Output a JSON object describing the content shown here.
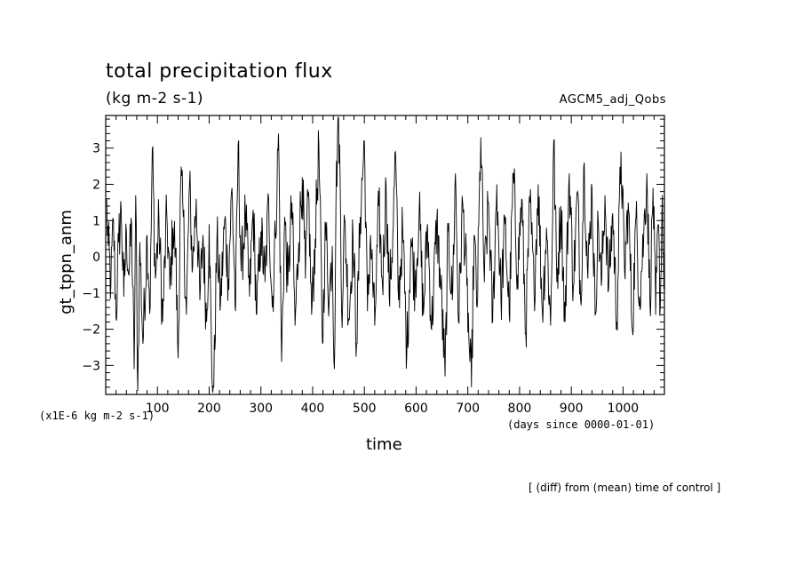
{
  "chart_data": {
    "type": "line",
    "title": "total precipitation flux",
    "units": "(kg m-2 s-1)",
    "dataset": "AGCM5_adj_Qobs",
    "ylabel": "gt_tppn_anm",
    "xlabel": "time",
    "y_scale_note": "(x1E-6 kg m-2 s-1)",
    "x_units": "(days since 0000-01-01)",
    "footnote": "[ (diff) from (mean) time of control ]",
    "xlim": [
      0,
      1080
    ],
    "ylim": [
      -3.8,
      3.9
    ],
    "x_ticks": [
      100,
      200,
      300,
      400,
      500,
      600,
      700,
      800,
      900,
      1000
    ],
    "x_tick_labels": [
      "100",
      "200",
      "300",
      "400",
      "500",
      "600",
      "700",
      "800",
      "900",
      "1000"
    ],
    "y_ticks": [
      3,
      2,
      1,
      0,
      -1,
      -2,
      -3
    ],
    "y_tick_labels": [
      "3",
      "2",
      "1",
      "0",
      "−1",
      "−2",
      "−3"
    ],
    "series": [
      {
        "color": "#000000",
        "x_start": 1,
        "x_step": 1,
        "anchors": [
          [
            1,
            1.6
          ],
          [
            5,
            0.3
          ],
          [
            10,
            -0.8
          ],
          [
            15,
            1.0
          ],
          [
            20,
            -1.7
          ],
          [
            25,
            0.4
          ],
          [
            30,
            1.3
          ],
          [
            35,
            -1.1
          ],
          [
            40,
            0.7
          ],
          [
            45,
            -0.5
          ],
          [
            50,
            0.9
          ],
          [
            55,
            -3.1
          ],
          [
            58,
            1.7
          ],
          [
            62,
            -3.7
          ],
          [
            66,
            0.4
          ],
          [
            72,
            -2.4
          ],
          [
            80,
            0.6
          ],
          [
            86,
            -1.4
          ],
          [
            90,
            3.0
          ],
          [
            96,
            -0.6
          ],
          [
            103,
            1.0
          ],
          [
            110,
            -1.8
          ],
          [
            118,
            1.2
          ],
          [
            124,
            -0.9
          ],
          [
            130,
            0.8
          ],
          [
            135,
            0.2
          ],
          [
            140,
            -2.8
          ],
          [
            145,
            2.1
          ],
          [
            150,
            1.1
          ],
          [
            156,
            -1.6
          ],
          [
            162,
            2.0
          ],
          [
            168,
            -0.3
          ],
          [
            175,
            1.6
          ],
          [
            182,
            -1.2
          ],
          [
            188,
            0.6
          ],
          [
            195,
            -1.8
          ],
          [
            200,
            0.9
          ],
          [
            205,
            -3.2
          ],
          [
            209,
            -3.6
          ],
          [
            215,
            0.5
          ],
          [
            222,
            -1.3
          ],
          [
            230,
            1.0
          ],
          [
            237,
            -0.6
          ],
          [
            244,
            1.9
          ],
          [
            251,
            -1.5
          ],
          [
            256,
            3.1
          ],
          [
            262,
            -0.4
          ],
          [
            270,
            1.2
          ],
          [
            278,
            -1.1
          ],
          [
            285,
            1.3
          ],
          [
            292,
            -1.6
          ],
          [
            300,
            0.7
          ],
          [
            308,
            -0.7
          ],
          [
            315,
            1.6
          ],
          [
            322,
            -1.4
          ],
          [
            328,
            0.6
          ],
          [
            334,
            3.4
          ],
          [
            340,
            -2.9
          ],
          [
            346,
            1.1
          ],
          [
            352,
            -0.8
          ],
          [
            360,
            1.5
          ],
          [
            366,
            -1.9
          ],
          [
            373,
            0.4
          ],
          [
            380,
            2.2
          ],
          [
            386,
            -0.6
          ],
          [
            392,
            1.8
          ],
          [
            398,
            -1.6
          ],
          [
            405,
            0.5
          ],
          [
            412,
            3.1
          ],
          [
            419,
            -2.4
          ],
          [
            425,
            0.9
          ],
          [
            432,
            -1.2
          ],
          [
            438,
            0.3
          ],
          [
            442,
            -3.1
          ],
          [
            445,
            1.4
          ],
          [
            449,
            3.9
          ],
          [
            452,
            3.1
          ],
          [
            456,
            -1.5
          ],
          [
            462,
            1.0
          ],
          [
            470,
            -1.7
          ],
          [
            478,
            0.6
          ],
          [
            485,
            -2.4
          ],
          [
            492,
            1.1
          ],
          [
            500,
            3.2
          ],
          [
            506,
            -1.5
          ],
          [
            512,
            0.6
          ],
          [
            520,
            -1.9
          ],
          [
            528,
            1.4
          ],
          [
            535,
            -0.8
          ],
          [
            542,
            2.0
          ],
          [
            548,
            -1.1
          ],
          [
            555,
            0.6
          ],
          [
            560,
            2.9
          ],
          [
            566,
            -1.2
          ],
          [
            574,
            0.8
          ],
          [
            582,
            -2.7
          ],
          [
            590,
            0.5
          ],
          [
            598,
            -0.8
          ],
          [
            606,
            1.3
          ],
          [
            614,
            -1.6
          ],
          [
            622,
            0.9
          ],
          [
            630,
            -2.0
          ],
          [
            640,
            1.0
          ],
          [
            648,
            -0.9
          ],
          [
            656,
            -3.3
          ],
          [
            662,
            0.7
          ],
          [
            670,
            -1.2
          ],
          [
            676,
            2.3
          ],
          [
            682,
            -1.8
          ],
          [
            690,
            1.5
          ],
          [
            698,
            -0.8
          ],
          [
            704,
            -2.9
          ],
          [
            707,
            -3.6
          ],
          [
            712,
            0.6
          ],
          [
            718,
            -1.4
          ],
          [
            725,
            3.3
          ],
          [
            732,
            -0.7
          ],
          [
            740,
            1.5
          ],
          [
            748,
            -1.8
          ],
          [
            756,
            2.0
          ],
          [
            764,
            -1.2
          ],
          [
            772,
            0.9
          ],
          [
            780,
            -1.6
          ],
          [
            788,
            2.3
          ],
          [
            796,
            -0.5
          ],
          [
            804,
            1.6
          ],
          [
            812,
            -2.1
          ],
          [
            820,
            1.5
          ],
          [
            828,
            -1.0
          ],
          [
            836,
            2.0
          ],
          [
            844,
            -1.5
          ],
          [
            852,
            0.8
          ],
          [
            860,
            -1.9
          ],
          [
            866,
            3.2
          ],
          [
            872,
            -0.7
          ],
          [
            880,
            1.4
          ],
          [
            888,
            -1.8
          ],
          [
            896,
            2.3
          ],
          [
            904,
            -0.8
          ],
          [
            912,
            1.8
          ],
          [
            918,
            -1.2
          ],
          [
            925,
            2.6
          ],
          [
            932,
            -0.6
          ],
          [
            940,
            1.9
          ],
          [
            946,
            -1.6
          ],
          [
            952,
            1.0
          ],
          [
            958,
            -0.8
          ],
          [
            965,
            1.7
          ],
          [
            972,
            -0.9
          ],
          [
            980,
            1.2
          ],
          [
            988,
            -1.8
          ],
          [
            996,
            2.9
          ],
          [
            1003,
            -0.4
          ],
          [
            1010,
            1.5
          ],
          [
            1018,
            -2.0
          ],
          [
            1025,
            1.1
          ],
          [
            1032,
            -1.1
          ],
          [
            1040,
            0.6
          ],
          [
            1046,
            2.3
          ],
          [
            1052,
            -1.3
          ],
          [
            1058,
            1.9
          ],
          [
            1063,
            -1.6
          ],
          [
            1068,
            0.9
          ],
          [
            1072,
            -1.4
          ],
          [
            1076,
            1.7
          ],
          [
            1079,
            -0.9
          ]
        ]
      }
    ]
  }
}
